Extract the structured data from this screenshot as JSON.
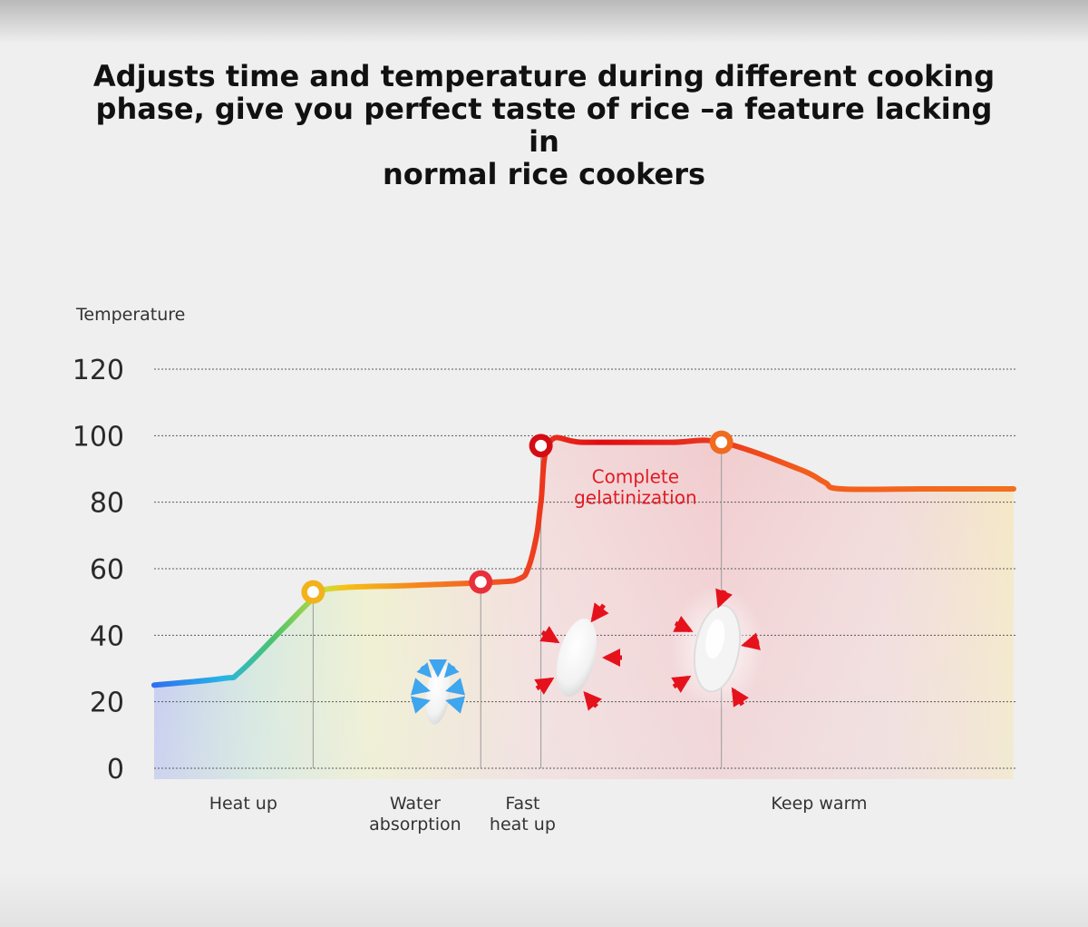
{
  "title_lines": [
    "Adjusts time and temperature during different cooking",
    "phase, give you perfect taste of rice –a feature lacking in",
    "normal rice cookers"
  ],
  "chart_data": {
    "type": "line",
    "title": "Adjusts time and temperature during different cooking phase, give you perfect taste of rice –a feature lacking in normal rice cookers",
    "ylabel": "Temperature",
    "xlabel": "",
    "ylim": [
      0,
      120
    ],
    "yticks": [
      0,
      20,
      40,
      60,
      80,
      100,
      120
    ],
    "grid": true,
    "xlim": [
      0,
      10
    ],
    "x": [
      0,
      0.8,
      1.0,
      1.5,
      1.85,
      2.05,
      3.0,
      4.0,
      4.25,
      4.35,
      4.45,
      4.5,
      4.6,
      5.0,
      6.0,
      6.6,
      7.5,
      7.8,
      8.0,
      9.0,
      10.0
    ],
    "y": [
      25,
      27,
      29,
      42,
      51,
      54,
      55,
      56,
      57,
      60,
      70,
      80,
      98,
      98,
      98,
      98,
      90,
      86,
      84,
      84,
      84
    ],
    "markers": [
      {
        "x": 1.85,
        "y": 53,
        "color": "#f2b21c"
      },
      {
        "x": 3.8,
        "y": 56,
        "color": "#e8303a"
      },
      {
        "x": 4.5,
        "y": 97,
        "color": "#d40d14"
      },
      {
        "x": 6.6,
        "y": 98,
        "color": "#f06a1f"
      }
    ],
    "phase_dividers_x": [
      1.85,
      3.8,
      4.5,
      6.6
    ],
    "phases": [
      {
        "label": "Heat up",
        "x": 0.9
      },
      {
        "label": "Water absorption",
        "x": 2.9
      },
      {
        "label": "Fast heat up",
        "x": 4.15
      },
      {
        "label": "Keep warm",
        "x": 7.6
      }
    ],
    "annotation": {
      "text": "Complete gelatinization",
      "x": 5.6,
      "y": 83,
      "color": "#e01c24"
    },
    "gradient_colors": [
      "#2e6ff0",
      "#27b4e6",
      "#4cc46a",
      "#c9dc3c",
      "#f5c316",
      "#f58a1c",
      "#f04a22",
      "#e00c12",
      "#e6261e",
      "#f35d1c",
      "#f3701e"
    ]
  }
}
